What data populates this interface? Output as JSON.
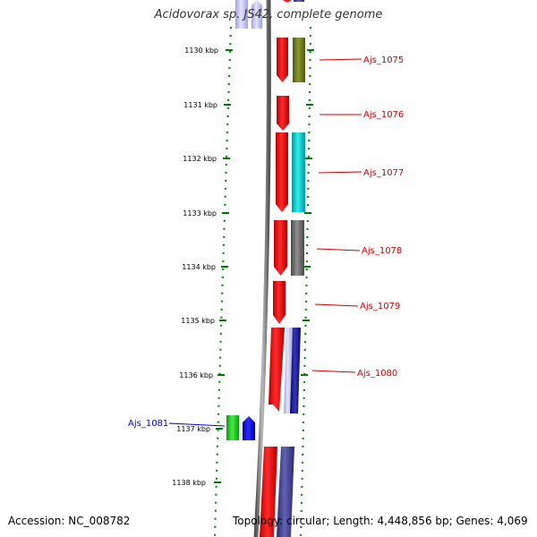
{
  "title": "Acidovorax sp. JS42, complete genome",
  "footer": {
    "accession": "Accession: NC_008782",
    "stats": "Topology: circular; Length: 4,448,856 bp; Genes: 4,069"
  },
  "ruler": {
    "ticks": [
      "1130 kbp",
      "1131 kbp",
      "1132 kbp",
      "1133 kbp",
      "1134 kbp",
      "1135 kbp",
      "1136 kbp",
      "1137 kbp",
      "1138 kbp"
    ]
  },
  "genes": [
    {
      "label": "Ajs_1075",
      "color": "#cc0000"
    },
    {
      "label": "Ajs_1076",
      "color": "#cc0000"
    },
    {
      "label": "Ajs_1077",
      "color": "#cc0000"
    },
    {
      "label": "Ajs_1078",
      "color": "#cc0000"
    },
    {
      "label": "Ajs_1079",
      "color": "#cc0000"
    },
    {
      "label": "Ajs_1080",
      "color": "#cc0000"
    },
    {
      "label": "Ajs_1081",
      "color": "#0000cc"
    }
  ],
  "colors": {
    "cds_forward": "#ff0000",
    "cds_reverse": "#0000ff",
    "backbone": "#888888",
    "tick_marks": "#008000",
    "cog_olive": "#6b7a1a",
    "cog_cyan": "#00cccc",
    "cog_gray": "#6e6e6e",
    "cog_navy": "#1a1a8c",
    "cog_purple": "#3d3d8f",
    "cog_green": "#22cc22",
    "cog_lavender": "#b8b8ee"
  }
}
